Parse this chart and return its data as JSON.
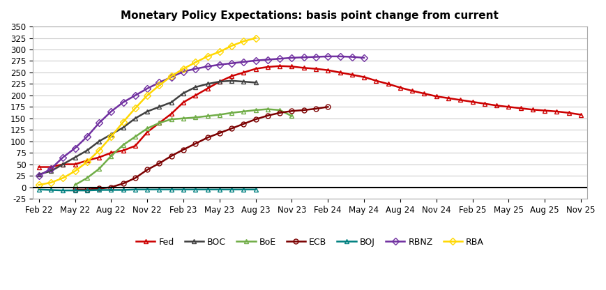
{
  "title": "Monetary Policy Expectations: basis point change from current",
  "ylim": [
    -25,
    350
  ],
  "yticks": [
    -25,
    0,
    25,
    50,
    75,
    100,
    125,
    150,
    175,
    200,
    225,
    250,
    275,
    300,
    325,
    350
  ],
  "xtick_labels": [
    "Feb 22",
    "May 22",
    "Aug 22",
    "Nov 22",
    "Feb 23",
    "May 23",
    "Aug 23",
    "Nov 23",
    "Feb 24",
    "May 24",
    "Aug 24",
    "Nov 24",
    "Feb 25",
    "May 25",
    "Aug 25",
    "Nov 25"
  ],
  "xtick_positions": [
    0,
    3,
    6,
    9,
    12,
    15,
    18,
    21,
    24,
    27,
    30,
    33,
    36,
    39,
    42,
    45
  ],
  "series": {
    "Fed": {
      "color": "#CC0000",
      "marker": "^",
      "markersize": 5,
      "markerfacecolor": "none",
      "linewidth": 1.8,
      "x": [
        0,
        1,
        2,
        3,
        4,
        5,
        6,
        7,
        8,
        9,
        10,
        11,
        12,
        13,
        14,
        15,
        16,
        17,
        18,
        19,
        20,
        21,
        22,
        23,
        24,
        25,
        26,
        27,
        28,
        29,
        30,
        31,
        32,
        33,
        34,
        35,
        36,
        37,
        38,
        39,
        40,
        41,
        42,
        43,
        44,
        45
      ],
      "y": [
        44,
        44,
        50,
        50,
        58,
        65,
        75,
        80,
        90,
        120,
        140,
        160,
        185,
        200,
        215,
        230,
        242,
        250,
        258,
        262,
        264,
        263,
        260,
        258,
        255,
        250,
        245,
        240,
        232,
        225,
        217,
        210,
        204,
        198,
        194,
        190,
        186,
        182,
        178,
        175,
        172,
        169,
        167,
        165,
        162,
        158
      ]
    },
    "BOC": {
      "color": "#404040",
      "marker": "^",
      "markersize": 5,
      "markerfacecolor": "none",
      "linewidth": 1.8,
      "x": [
        0,
        1,
        2,
        3,
        4,
        5,
        6,
        7,
        8,
        9,
        10,
        11,
        12,
        13,
        14,
        15,
        16,
        17,
        18
      ],
      "y": [
        28,
        35,
        50,
        65,
        80,
        100,
        115,
        130,
        150,
        165,
        175,
        185,
        205,
        218,
        225,
        230,
        232,
        230,
        228
      ]
    },
    "BoE": {
      "color": "#70AD47",
      "marker": "^",
      "markersize": 5,
      "markerfacecolor": "none",
      "linewidth": 1.8,
      "x": [
        3,
        4,
        5,
        6,
        7,
        8,
        9,
        10,
        11,
        12,
        13,
        14,
        15,
        16,
        17,
        18,
        19,
        20,
        21
      ],
      "y": [
        5,
        20,
        40,
        68,
        92,
        110,
        128,
        140,
        148,
        150,
        152,
        155,
        158,
        162,
        165,
        168,
        170,
        168,
        155
      ]
    },
    "ECB": {
      "color": "#7B0000",
      "marker": "o",
      "markersize": 5,
      "markerfacecolor": "none",
      "linewidth": 1.8,
      "x": [
        3,
        4,
        5,
        6,
        7,
        8,
        9,
        10,
        11,
        12,
        13,
        14,
        15,
        16,
        17,
        18,
        19,
        20,
        21,
        22,
        23,
        24
      ],
      "y": [
        -5,
        -5,
        -3,
        0,
        8,
        20,
        38,
        52,
        68,
        82,
        95,
        108,
        118,
        128,
        138,
        148,
        156,
        162,
        166,
        168,
        171,
        175
      ]
    },
    "BOJ": {
      "color": "#008080",
      "marker": "^",
      "markersize": 5,
      "markerfacecolor": "none",
      "linewidth": 1.8,
      "x": [
        0,
        1,
        2,
        3,
        4,
        5,
        6,
        7,
        8,
        9,
        10,
        11,
        12,
        13,
        14,
        15,
        16,
        17,
        18
      ],
      "y": [
        -5,
        -6,
        -7,
        -7,
        -7,
        -6,
        -6,
        -6,
        -5,
        -5,
        -5,
        -5,
        -5,
        -5,
        -5,
        -5,
        -5,
        -5,
        -5
      ]
    },
    "RBNZ": {
      "color": "#7030A0",
      "marker": "D",
      "markersize": 5,
      "markerfacecolor": "none",
      "linewidth": 1.8,
      "x": [
        0,
        1,
        2,
        3,
        4,
        5,
        6,
        7,
        8,
        9,
        10,
        11,
        12,
        13,
        14,
        15,
        16,
        17,
        18,
        19,
        20,
        21,
        22,
        23,
        24,
        25,
        26,
        27
      ],
      "y": [
        25,
        40,
        65,
        85,
        110,
        140,
        165,
        185,
        200,
        215,
        228,
        240,
        252,
        258,
        263,
        267,
        270,
        273,
        276,
        278,
        280,
        282,
        283,
        284,
        285,
        285,
        284,
        282
      ]
    },
    "RBA": {
      "color": "#FFD700",
      "marker": "D",
      "markersize": 5,
      "markerfacecolor": "none",
      "linewidth": 1.8,
      "x": [
        0,
        1,
        2,
        3,
        4,
        5,
        6,
        7,
        8,
        9,
        10,
        11,
        12,
        13,
        14,
        15,
        16,
        17,
        18
      ],
      "y": [
        5,
        10,
        20,
        35,
        55,
        80,
        110,
        142,
        172,
        200,
        222,
        242,
        258,
        272,
        285,
        295,
        308,
        318,
        325
      ]
    }
  }
}
